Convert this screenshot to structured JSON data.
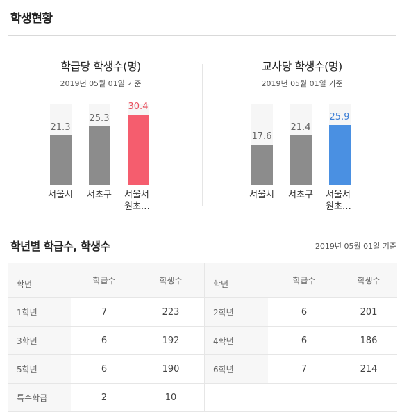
{
  "section_title": "학생현황",
  "panels": [
    {
      "title": "학급당 학생수(명)",
      "date": "2019년 05월 01일 기준"
    },
    {
      "title": "교사당 학생수(명)",
      "date": "2019년 05월 01일 기준"
    }
  ],
  "chart_data": [
    {
      "type": "bar",
      "title": "학급당 학생수(명)",
      "categories": [
        "서울시",
        "서초구",
        "서울서원초…"
      ],
      "values": [
        21.3,
        25.3,
        30.4
      ],
      "value_labels": [
        "21.3",
        "25.3",
        "30.4"
      ],
      "ylim": [
        0,
        35
      ],
      "colors": [
        "#8c8c8c",
        "#8c8c8c",
        "#f55d6e"
      ],
      "value_colors": [
        "#666666",
        "#666666",
        "#e8505e"
      ]
    },
    {
      "type": "bar",
      "title": "교사당 학생수(명)",
      "categories": [
        "서울시",
        "서초구",
        "서울서원초…"
      ],
      "values": [
        17.6,
        21.4,
        25.9
      ],
      "value_labels": [
        "17.6",
        "21.4",
        "25.9"
      ],
      "ylim": [
        0,
        35
      ],
      "colors": [
        "#8c8c8c",
        "#8c8c8c",
        "#4a90e2"
      ],
      "value_colors": [
        "#666666",
        "#666666",
        "#3d7fd6"
      ]
    }
  ],
  "grades": {
    "title": "학년별 학급수, 학생수",
    "date": "2019년 05월 01일 기준",
    "headers": [
      "학년",
      "학급수",
      "학생수",
      "학년",
      "학급수",
      "학생수"
    ],
    "rows": [
      [
        "1학년",
        "7",
        "223",
        "2학년",
        "6",
        "201"
      ],
      [
        "3학년",
        "6",
        "192",
        "4학년",
        "6",
        "186"
      ],
      [
        "5학년",
        "6",
        "190",
        "6학년",
        "7",
        "214"
      ],
      [
        "특수학급",
        "2",
        "10",
        "",
        "",
        ""
      ]
    ]
  }
}
